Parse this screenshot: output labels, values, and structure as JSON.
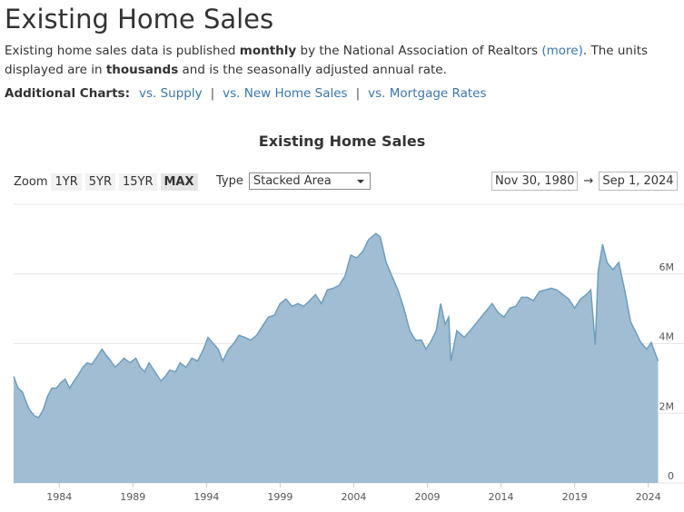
{
  "header": {
    "title": "Existing Home Sales"
  },
  "description": {
    "parts": [
      "Existing home sales data is published ",
      "monthly",
      " by the National Association of Realtors ",
      "(more)",
      ". The units displayed are in ",
      "thousands",
      " and is the seasonally adjusted annual rate."
    ]
  },
  "additional_charts": {
    "label": "Additional Charts:",
    "links": [
      "vs. Supply",
      "vs. New Home Sales",
      "vs. Mortgage Rates"
    ]
  },
  "controls": {
    "zoom_label": "Zoom",
    "zoom_options": [
      "1YR",
      "5YR",
      "15YR",
      "MAX"
    ],
    "type_label": "Type",
    "type_value": "Stacked Area",
    "start_date": "Nov 30, 1980",
    "arrow": "→",
    "end_date": "Sep 1, 2024"
  },
  "chart_data": {
    "type": "area",
    "title": "Existing Home Sales",
    "x": [
      1980.9,
      1981.2,
      1981.5,
      1981.8,
      1982.0,
      1982.3,
      1982.6,
      1982.9,
      1983.2,
      1983.5,
      1983.8,
      1984.1,
      1984.4,
      1984.7,
      1985.0,
      1985.3,
      1985.6,
      1985.9,
      1986.2,
      1986.5,
      1986.9,
      1987.2,
      1987.5,
      1987.8,
      1988.1,
      1988.4,
      1988.8,
      1989.2,
      1989.5,
      1989.8,
      1990.1,
      1990.5,
      1990.9,
      1991.2,
      1991.5,
      1991.9,
      1992.2,
      1992.6,
      1993.0,
      1993.4,
      1993.8,
      1994.1,
      1994.4,
      1994.8,
      1995.1,
      1995.5,
      1995.9,
      1996.2,
      1996.6,
      1997.0,
      1997.4,
      1997.8,
      1998.2,
      1998.6,
      1999.0,
      1999.4,
      1999.8,
      2000.2,
      2000.6,
      2001.0,
      2001.4,
      2001.8,
      2002.2,
      2002.6,
      2003.0,
      2003.4,
      2003.8,
      2004.2,
      2004.6,
      2005.0,
      2005.5,
      2005.8,
      2006.2,
      2006.6,
      2007.0,
      2007.4,
      2007.8,
      2008.2,
      2008.6,
      2008.9,
      2009.2,
      2009.6,
      2009.9,
      2010.2,
      2010.45,
      2010.6,
      2011.0,
      2011.5,
      2011.9,
      2012.4,
      2012.9,
      2013.4,
      2013.8,
      2014.2,
      2014.6,
      2015.0,
      2015.4,
      2015.8,
      2016.2,
      2016.6,
      2017.0,
      2017.4,
      2017.8,
      2018.2,
      2018.6,
      2019.0,
      2019.4,
      2019.8,
      2020.1,
      2020.4,
      2020.6,
      2020.9,
      2021.2,
      2021.6,
      2022.0,
      2022.4,
      2022.8,
      2023.1,
      2023.5,
      2023.9,
      2024.2,
      2024.67
    ],
    "series": [
      {
        "name": "Existing Home Sales",
        "color": "#a0bdd3",
        "values": [
          3060000,
          2720000,
          2610000,
          2270000,
          2090000,
          1930000,
          1880000,
          2090000,
          2480000,
          2720000,
          2720000,
          2880000,
          2980000,
          2720000,
          2930000,
          3110000,
          3320000,
          3450000,
          3400000,
          3580000,
          3840000,
          3660000,
          3500000,
          3320000,
          3450000,
          3580000,
          3450000,
          3580000,
          3320000,
          3190000,
          3450000,
          3190000,
          2930000,
          3060000,
          3240000,
          3190000,
          3450000,
          3320000,
          3580000,
          3500000,
          3840000,
          4180000,
          4030000,
          3840000,
          3500000,
          3840000,
          4030000,
          4240000,
          4180000,
          4100000,
          4240000,
          4500000,
          4760000,
          4810000,
          5150000,
          5280000,
          5070000,
          5150000,
          5070000,
          5230000,
          5410000,
          5150000,
          5540000,
          5590000,
          5670000,
          5930000,
          6540000,
          6460000,
          6640000,
          6980000,
          7160000,
          7060000,
          6330000,
          5930000,
          5540000,
          5020000,
          4370000,
          4100000,
          4100000,
          3840000,
          4030000,
          4370000,
          5150000,
          4550000,
          4760000,
          3500000,
          4370000,
          4180000,
          4370000,
          4630000,
          4890000,
          5150000,
          4890000,
          4760000,
          5020000,
          5070000,
          5330000,
          5330000,
          5230000,
          5490000,
          5540000,
          5590000,
          5540000,
          5410000,
          5280000,
          5020000,
          5280000,
          5410000,
          5540000,
          3970000,
          6070000,
          6850000,
          6330000,
          6120000,
          6330000,
          5540000,
          4630000,
          4370000,
          4030000,
          3840000,
          4030000,
          3500000
        ]
      }
    ],
    "xlim": [
      1980.9,
      2024.7
    ],
    "xticks": [
      1984,
      1989,
      1994,
      1999,
      2004,
      2009,
      2014,
      2019,
      2024
    ],
    "ylim": [
      0,
      8000000
    ],
    "yticks": [
      0,
      {
        "value": 2000000,
        "label": "2M"
      },
      {
        "value": 4000000,
        "label": "4M"
      },
      {
        "value": 6000000,
        "label": "6M"
      }
    ],
    "grid": true
  }
}
